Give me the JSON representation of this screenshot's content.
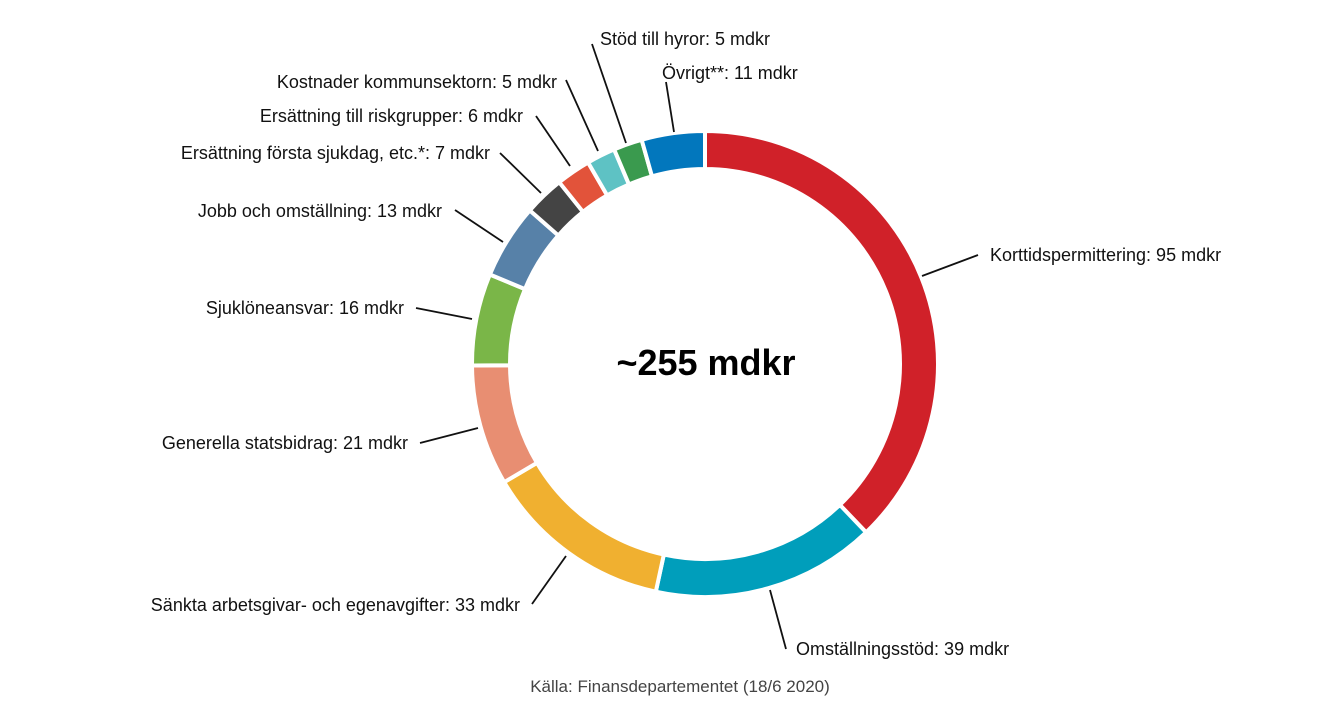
{
  "chart_data": {
    "type": "pie",
    "donut": true,
    "center_label": "~255 mdkr",
    "source": "Källa: Finansdepartementet (18/6 2020)",
    "unit": "mdkr",
    "slices": [
      {
        "label": "Korttidspermittering: 95 mdkr",
        "value": 95,
        "color": "#D02129"
      },
      {
        "label": "Omställningsstöd: 39 mdkr",
        "value": 39,
        "color": "#009EBB"
      },
      {
        "label": "Sänkta arbetsgivar- och egenavgifter: 33 mdkr",
        "value": 33,
        "color": "#F0B030"
      },
      {
        "label": "Generella statsbidrag: 21 mdkr",
        "value": 21,
        "color": "#E88E72"
      },
      {
        "label": "Sjuklöneansvar: 16 mdkr",
        "value": 16,
        "color": "#7AB648"
      },
      {
        "label": "Jobb och omställning: 13 mdkr",
        "value": 13,
        "color": "#5781A8"
      },
      {
        "label": "Ersättning första sjukdag, etc.*: 7 mdkr",
        "value": 7,
        "color": "#444444"
      },
      {
        "label": "Ersättning till riskgrupper: 6 mdkr",
        "value": 6,
        "color": "#E2533A"
      },
      {
        "label": "Kostnader kommunsektorn: 5 mdkr",
        "value": 5,
        "color": "#5EC2C4"
      },
      {
        "label": "Stöd till hyror: 5 mdkr",
        "value": 5,
        "color": "#3A9A4E"
      },
      {
        "label": "Övrigt**: 11 mdkr",
        "value": 11,
        "color": "#0277BD"
      }
    ]
  }
}
